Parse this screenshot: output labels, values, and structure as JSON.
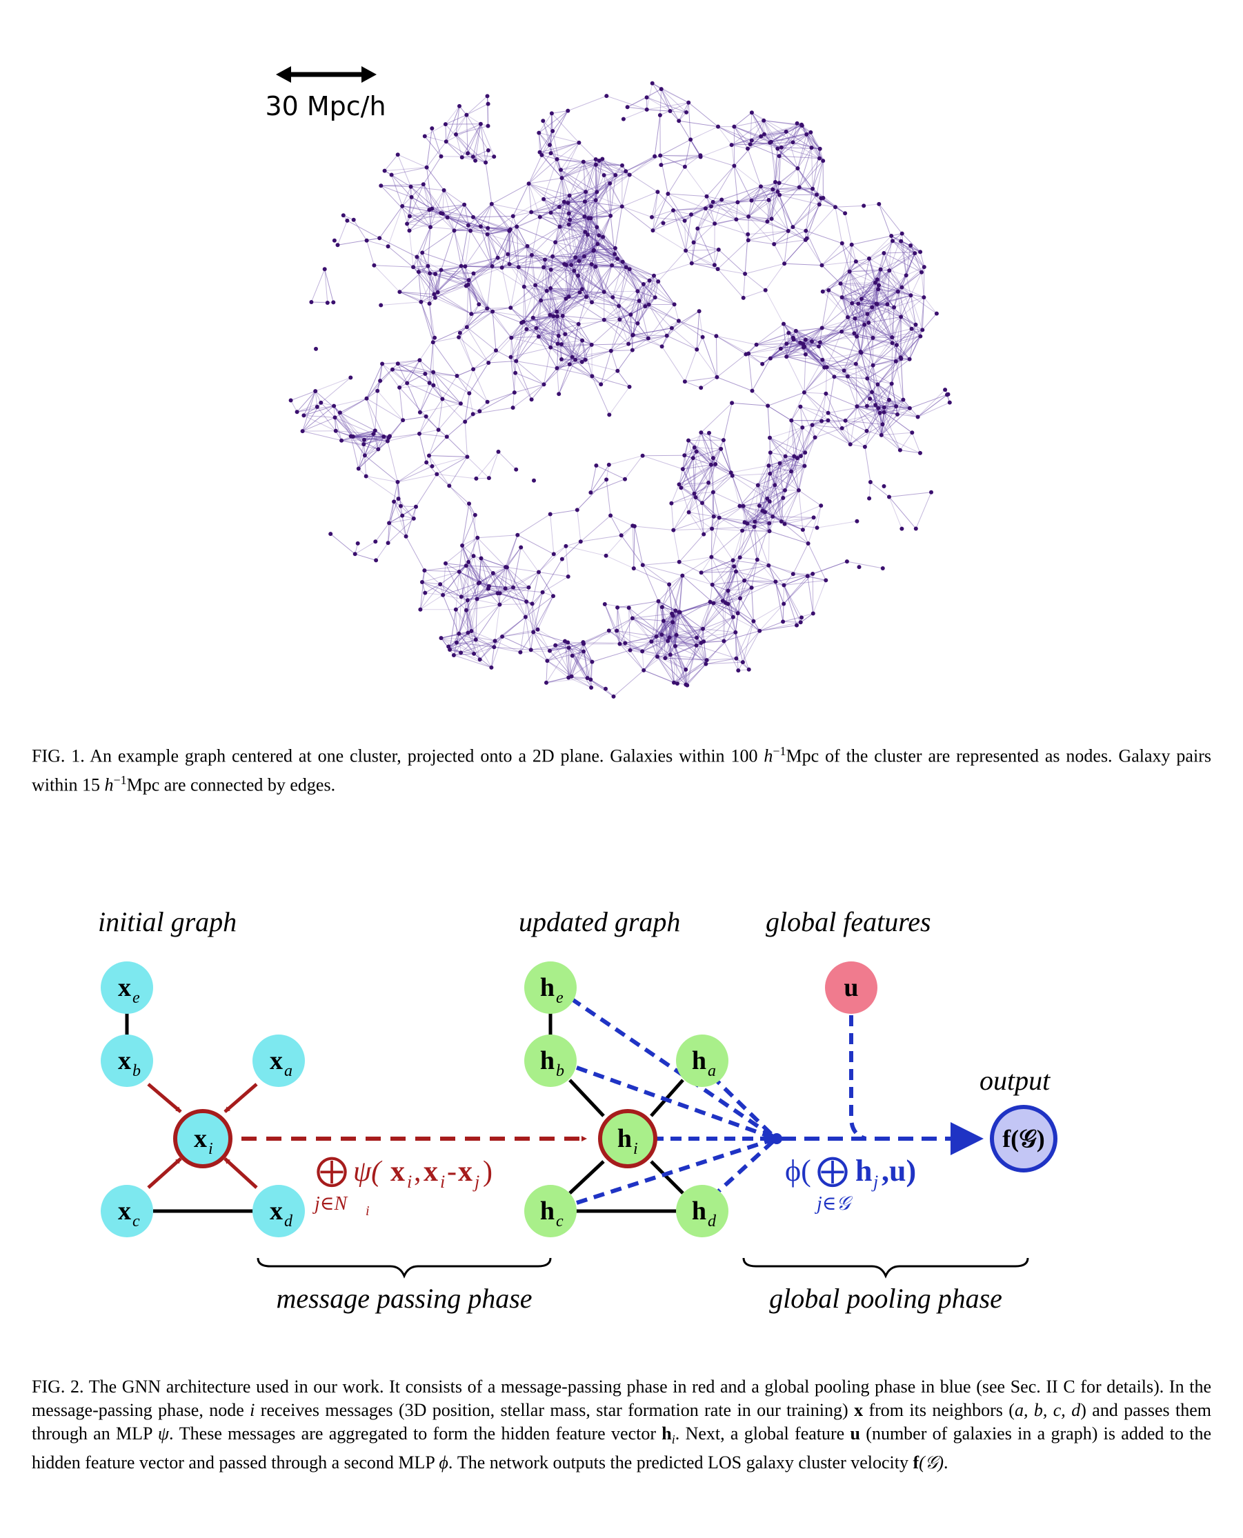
{
  "figure1": {
    "scale_label": "30 Mpc/h",
    "node_color": "#3a0f6e",
    "edge_color": "#6a4aa8",
    "caption": {
      "label": "FIG. 1.",
      "text_a": " An example graph centered at one cluster, projected onto a 2D plane. Galaxies within 100 ",
      "h": "h",
      "sup": "−1",
      "text_b": "Mpc of the cluster are represented as nodes. Galaxy pairs within 15 ",
      "h2": "h",
      "sup2": "−1",
      "text_c": "Mpc are connected by edges."
    }
  },
  "figure2": {
    "colors": {
      "input_node": "#7de8ef",
      "hidden_node": "#a9ef8a",
      "global_node": "#f07b8e",
      "output_node": "#c3c6f5",
      "message_red": "#a61c1c",
      "pool_blue": "#1f33c4"
    },
    "labels": {
      "initial_graph": "initial graph",
      "updated_graph": "updated graph",
      "global_features": "global features",
      "output": "output",
      "message_passing_phase": "message passing phase",
      "global_pooling_phase": "global pooling phase"
    },
    "nodes": {
      "xe": {
        "base": "x",
        "sub": "e"
      },
      "xb": {
        "base": "x",
        "sub": "b"
      },
      "xa": {
        "base": "x",
        "sub": "a"
      },
      "xi": {
        "base": "x",
        "sub": "i"
      },
      "xc": {
        "base": "x",
        "sub": "c"
      },
      "xd": {
        "base": "x",
        "sub": "d"
      },
      "he": {
        "base": "h",
        "sub": "e"
      },
      "hb": {
        "base": "h",
        "sub": "b"
      },
      "ha": {
        "base": "h",
        "sub": "a"
      },
      "hi": {
        "base": "h",
        "sub": "i"
      },
      "hc": {
        "base": "h",
        "sub": "c"
      },
      "hd": {
        "base": "h",
        "sub": "d"
      },
      "u": {
        "base": "u",
        "sub": ""
      },
      "out": {
        "base": "f(𝒢)",
        "sub": ""
      }
    },
    "message_formula": {
      "oplus": "⨁",
      "psi": "ψ(",
      "x": "x",
      "sub_i": "i",
      "comma": ",",
      "minus": "-",
      "sub_j": "j",
      "close": ")",
      "under": "j∈N",
      "under_sub": "i"
    },
    "pool_formula": {
      "phi": "ϕ(",
      "oplus": "⨁",
      "h": "h",
      "sub_j": "j",
      "rest": ",u)",
      "under": "j∈𝒢"
    }
  },
  "caption2": {
    "label": "FIG. 2.",
    "t1": " The GNN architecture used in our work. It consists of a message-passing phase in red and a global pooling phase in blue (see Sec. II C for details). In the message-passing phase, node ",
    "i": "i",
    "t2": " receives messages (3D position, stellar mass, star formation rate in our training) ",
    "x": "x",
    "t3": " from its neighbors (",
    "abcd": "a, b, c, d",
    "t4": ") and passes them through an MLP ",
    "psi": "ψ",
    "t5": ". These messages are aggregated to form the hidden feature vector ",
    "h": "h",
    "hsub": "i",
    "t6": ". Next, a global feature ",
    "u": "u",
    "t7": " (number of galaxies in a graph) is added to the hidden feature vector and passed through a second MLP ",
    "phi": "ϕ",
    "t8": ". The network outputs the predicted LOS galaxy cluster velocity ",
    "f": "f",
    "fG": "(𝒢)",
    "t9": "."
  }
}
